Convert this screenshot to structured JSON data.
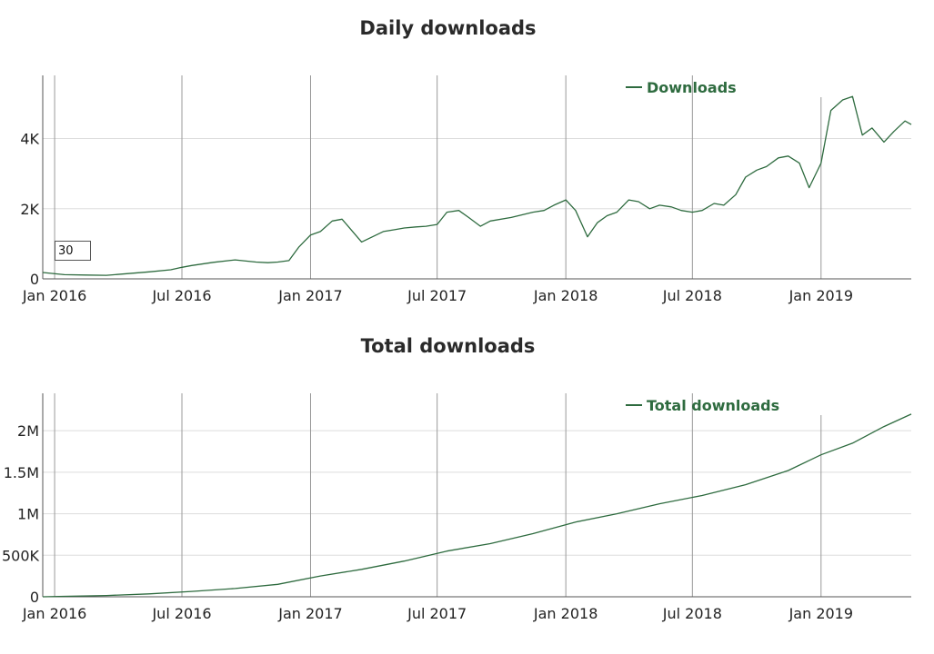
{
  "smoothing_input": {
    "value": "30"
  },
  "colors": {
    "line": "#2e6b3f",
    "legend": "#2e6b3f",
    "grid_h": "#dddddd",
    "grid_v": "#999999",
    "axis": "#555555"
  },
  "chart_data": [
    {
      "id": "daily",
      "type": "line",
      "title": "Daily downloads",
      "xlabel": "",
      "ylabel": "",
      "x_ticks": [
        "Jan 2016",
        "Jul 2016",
        "Jan 2017",
        "Jul 2017",
        "Jan 2018",
        "Jul 2018",
        "Jan 2019"
      ],
      "y_ticks": [
        "0",
        "2K",
        "4K"
      ],
      "ylim": [
        0,
        5800
      ],
      "xlim": [
        "2015-12-15",
        "2019-05-10"
      ],
      "legend": {
        "position": "top-right",
        "entries": [
          "Downloads"
        ]
      },
      "grid": true,
      "series": [
        {
          "name": "Downloads",
          "x": [
            "2015-12-15",
            "2016-01-15",
            "2016-02-15",
            "2016-03-15",
            "2016-04-15",
            "2016-05-15",
            "2016-06-15",
            "2016-07-01",
            "2016-07-15",
            "2016-08-15",
            "2016-09-15",
            "2016-10-15",
            "2016-11-01",
            "2016-11-15",
            "2016-12-01",
            "2016-12-15",
            "2017-01-01",
            "2017-01-15",
            "2017-02-01",
            "2017-02-15",
            "2017-03-15",
            "2017-04-15",
            "2017-05-01",
            "2017-05-15",
            "2017-06-01",
            "2017-06-15",
            "2017-07-01",
            "2017-07-15",
            "2017-08-01",
            "2017-08-15",
            "2017-09-01",
            "2017-09-15",
            "2017-10-15",
            "2017-11-15",
            "2017-12-01",
            "2017-12-15",
            "2018-01-01",
            "2018-01-15",
            "2018-02-01",
            "2018-02-15",
            "2018-03-01",
            "2018-03-15",
            "2018-04-01",
            "2018-04-15",
            "2018-05-01",
            "2018-05-15",
            "2018-06-01",
            "2018-06-15",
            "2018-07-01",
            "2018-07-15",
            "2018-08-01",
            "2018-08-15",
            "2018-09-01",
            "2018-09-15",
            "2018-10-01",
            "2018-10-15",
            "2018-11-01",
            "2018-11-15",
            "2018-12-01",
            "2018-12-15",
            "2019-01-01",
            "2019-01-15",
            "2019-02-01",
            "2019-02-15",
            "2019-03-01",
            "2019-03-15",
            "2019-04-01",
            "2019-04-15",
            "2019-05-01",
            "2019-05-10"
          ],
          "values": [
            180,
            120,
            110,
            100,
            150,
            200,
            260,
            330,
            380,
            470,
            540,
            480,
            460,
            480,
            520,
            900,
            1250,
            1350,
            1650,
            1700,
            1050,
            1350,
            1400,
            1450,
            1480,
            1500,
            1550,
            1900,
            1950,
            1750,
            1500,
            1650,
            1750,
            1900,
            1950,
            2100,
            2250,
            1950,
            1200,
            1600,
            1800,
            1900,
            2250,
            2200,
            2000,
            2100,
            2050,
            1950,
            1900,
            1950,
            2150,
            2100,
            2400,
            2900,
            3100,
            3200,
            3450,
            3500,
            3300,
            2600,
            3300,
            4800,
            5100,
            5200,
            4100,
            4300,
            3900,
            4200,
            4500,
            4400
          ]
        }
      ]
    },
    {
      "id": "total",
      "type": "line",
      "title": "Total downloads",
      "xlabel": "",
      "ylabel": "",
      "x_ticks": [
        "Jan 2016",
        "Jul 2016",
        "Jan 2017",
        "Jul 2017",
        "Jan 2018",
        "Jul 2018",
        "Jan 2019"
      ],
      "y_ticks": [
        "0",
        "500K",
        "1M",
        "1.5M",
        "2M"
      ],
      "ylim": [
        0,
        2450000
      ],
      "xlim": [
        "2015-12-15",
        "2019-05-10"
      ],
      "legend": {
        "position": "top-right",
        "entries": [
          "Total downloads"
        ]
      },
      "grid": true,
      "series": [
        {
          "name": "Total downloads",
          "x": [
            "2015-12-15",
            "2016-01-15",
            "2016-03-15",
            "2016-05-15",
            "2016-07-15",
            "2016-09-15",
            "2016-11-15",
            "2017-01-15",
            "2017-03-15",
            "2017-05-15",
            "2017-07-15",
            "2017-09-15",
            "2017-11-15",
            "2018-01-15",
            "2018-03-15",
            "2018-05-15",
            "2018-07-15",
            "2018-09-15",
            "2018-11-15",
            "2019-01-01",
            "2019-02-15",
            "2019-04-01",
            "2019-05-10"
          ],
          "values": [
            0,
            5000,
            15000,
            35000,
            65000,
            100000,
            150000,
            250000,
            330000,
            430000,
            550000,
            640000,
            760000,
            900000,
            1000000,
            1120000,
            1220000,
            1350000,
            1520000,
            1710000,
            1850000,
            2050000,
            2200000
          ]
        }
      ]
    }
  ]
}
